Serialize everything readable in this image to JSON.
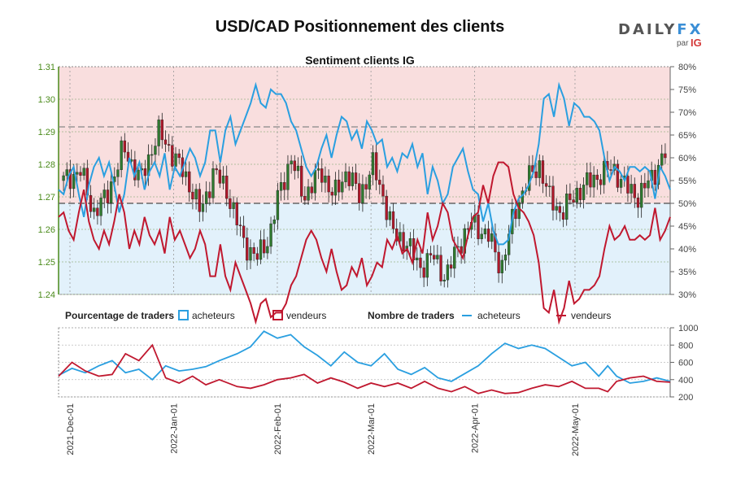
{
  "chart_data": {
    "type": "candlestick_with_sentiment",
    "title": "USD/CAD Positionnement des clients",
    "subtitle": "Sentiment clients IG",
    "logo": {
      "brand_left": "DAILY",
      "brand_right": "FX",
      "by": "par",
      "ig": "IG"
    },
    "price_axis": {
      "ticks": [
        "1.24",
        "1.25",
        "1.26",
        "1.27",
        "1.28",
        "1.29",
        "1.30",
        "1.31"
      ],
      "ylim": [
        1.24,
        1.31
      ]
    },
    "percent_axis": {
      "ticks": [
        "30%",
        "35%",
        "40%",
        "45%",
        "50%",
        "55%",
        "60%",
        "65%",
        "70%",
        "75%",
        "80%"
      ],
      "ylim": [
        30,
        80
      ]
    },
    "count_axis": {
      "ticks": [
        "200",
        "400",
        "600",
        "800",
        "1000"
      ],
      "ylim": [
        200,
        1000
      ]
    },
    "x_axis": {
      "ticks": [
        "2021-Dec-01",
        "2022-Jan-01",
        "2022-Feb-01",
        "2022-Mar-01",
        "2022-Apr-01",
        "2022-May-01"
      ],
      "n_days": 178
    },
    "legend": {
      "pct_label": "Pourcentage de traders",
      "count_label": "Nombre de traders",
      "buyers": "acheteurs",
      "sellers": "vendeurs"
    },
    "colors": {
      "buyers": "#2a9fe0",
      "sellers": "#c0182f",
      "up": "#2f7a2f",
      "down": "#b0182a",
      "bg_top": "#f9dede",
      "bg_bottom": "#e2f1fb",
      "axis_left": "#4a8a1a"
    },
    "price": [
      [
        0,
        1.275
      ],
      [
        8,
        1.278
      ],
      [
        14,
        1.265
      ],
      [
        20,
        1.27
      ],
      [
        28,
        1.285
      ],
      [
        36,
        1.275
      ],
      [
        44,
        1.29
      ],
      [
        52,
        1.282
      ],
      [
        60,
        1.272
      ],
      [
        64,
        1.265
      ],
      [
        70,
        1.278
      ],
      [
        76,
        1.272
      ],
      [
        84,
        1.256
      ],
      [
        90,
        1.251
      ],
      [
        96,
        1.258
      ],
      [
        100,
        1.27
      ],
      [
        106,
        1.282
      ],
      [
        112,
        1.27
      ],
      [
        120,
        1.278
      ],
      [
        126,
        1.27
      ],
      [
        132,
        1.278
      ],
      [
        138,
        1.27
      ],
      [
        144,
        1.28
      ],
      [
        150,
        1.268
      ],
      [
        154,
        1.258
      ],
      [
        160,
        1.256
      ],
      [
        166,
        1.248
      ],
      [
        172,
        1.252
      ],
      [
        178,
        1.245
      ],
      [
        184,
        1.255
      ],
      [
        190,
        1.262
      ],
      [
        198,
        1.258
      ],
      [
        204,
        1.248
      ],
      [
        210,
        1.265
      ],
      [
        216,
        1.275
      ],
      [
        222,
        1.28
      ],
      [
        226,
        1.27
      ],
      [
        232,
        1.265
      ],
      [
        240,
        1.272
      ],
      [
        248,
        1.276
      ],
      [
        256,
        1.279
      ],
      [
        262,
        1.273
      ],
      [
        268,
        1.27
      ],
      [
        274,
        1.276
      ],
      [
        282,
        1.285
      ]
    ],
    "buyers_pct": [
      [
        0,
        53
      ],
      [
        1,
        52
      ],
      [
        2,
        56
      ],
      [
        3,
        58
      ],
      [
        4,
        52
      ],
      [
        5,
        47
      ],
      [
        6,
        54
      ],
      [
        7,
        58
      ],
      [
        8,
        60
      ],
      [
        9,
        56
      ],
      [
        10,
        59
      ],
      [
        11,
        54
      ],
      [
        12,
        48
      ],
      [
        13,
        52
      ],
      [
        14,
        60
      ],
      [
        15,
        56
      ],
      [
        16,
        59
      ],
      [
        17,
        53
      ],
      [
        18,
        57
      ],
      [
        19,
        59
      ],
      [
        20,
        56
      ],
      [
        21,
        61
      ],
      [
        22,
        53
      ],
      [
        23,
        58
      ],
      [
        24,
        56
      ],
      [
        25,
        59
      ],
      [
        26,
        62
      ],
      [
        27,
        60
      ],
      [
        28,
        56
      ],
      [
        29,
        59
      ],
      [
        30,
        66
      ],
      [
        31,
        66
      ],
      [
        32,
        59
      ],
      [
        33,
        66
      ],
      [
        34,
        69
      ],
      [
        35,
        63
      ],
      [
        36,
        66
      ],
      [
        37,
        69
      ],
      [
        38,
        72
      ],
      [
        39,
        76
      ],
      [
        40,
        72
      ],
      [
        41,
        71
      ],
      [
        42,
        75
      ],
      [
        43,
        74
      ],
      [
        44,
        74
      ],
      [
        45,
        72
      ],
      [
        46,
        68
      ],
      [
        47,
        66
      ],
      [
        48,
        62
      ],
      [
        49,
        58
      ],
      [
        50,
        56
      ],
      [
        51,
        58
      ],
      [
        52,
        62
      ],
      [
        53,
        65
      ],
      [
        54,
        60
      ],
      [
        55,
        65
      ],
      [
        56,
        69
      ],
      [
        57,
        68
      ],
      [
        58,
        64
      ],
      [
        59,
        66
      ],
      [
        60,
        62
      ],
      [
        61,
        68
      ],
      [
        62,
        66
      ],
      [
        63,
        63
      ],
      [
        64,
        64
      ],
      [
        65,
        58
      ],
      [
        66,
        60
      ],
      [
        67,
        57
      ],
      [
        68,
        61
      ],
      [
        69,
        60
      ],
      [
        70,
        63
      ],
      [
        71,
        58
      ],
      [
        72,
        61
      ],
      [
        73,
        52
      ],
      [
        74,
        58
      ],
      [
        75,
        55
      ],
      [
        76,
        50
      ],
      [
        77,
        52
      ],
      [
        78,
        58
      ],
      [
        79,
        60
      ],
      [
        80,
        62
      ],
      [
        81,
        57
      ],
      [
        82,
        53
      ],
      [
        83,
        52
      ],
      [
        84,
        46
      ],
      [
        85,
        50
      ],
      [
        86,
        44
      ],
      [
        87,
        41
      ],
      [
        88,
        41
      ],
      [
        89,
        42
      ],
      [
        90,
        48
      ],
      [
        91,
        51
      ],
      [
        92,
        52
      ],
      [
        93,
        54
      ],
      [
        94,
        57
      ],
      [
        95,
        63
      ],
      [
        96,
        73
      ],
      [
        97,
        74
      ],
      [
        98,
        69
      ],
      [
        99,
        76
      ],
      [
        100,
        73
      ],
      [
        101,
        67
      ],
      [
        102,
        72
      ],
      [
        103,
        71
      ],
      [
        104,
        69
      ],
      [
        105,
        69
      ],
      [
        106,
        68
      ],
      [
        107,
        66
      ],
      [
        108,
        60
      ],
      [
        109,
        55
      ],
      [
        110,
        58
      ],
      [
        111,
        57
      ],
      [
        112,
        55
      ],
      [
        113,
        58
      ],
      [
        114,
        58
      ],
      [
        115,
        57
      ],
      [
        116,
        58
      ],
      [
        117,
        57
      ],
      [
        118,
        51
      ],
      [
        119,
        58
      ],
      [
        120,
        56
      ],
      [
        121,
        53
      ]
    ],
    "sellers_pct": [
      [
        0,
        47
      ],
      [
        1,
        48
      ],
      [
        2,
        44
      ],
      [
        3,
        42
      ],
      [
        4,
        48
      ],
      [
        5,
        53
      ],
      [
        6,
        46
      ],
      [
        7,
        42
      ],
      [
        8,
        40
      ],
      [
        9,
        44
      ],
      [
        10,
        41
      ],
      [
        11,
        46
      ],
      [
        12,
        52
      ],
      [
        13,
        48
      ],
      [
        14,
        40
      ],
      [
        15,
        44
      ],
      [
        16,
        41
      ],
      [
        17,
        47
      ],
      [
        18,
        43
      ],
      [
        19,
        41
      ],
      [
        20,
        44
      ],
      [
        21,
        39
      ],
      [
        22,
        47
      ],
      [
        23,
        42
      ],
      [
        24,
        44
      ],
      [
        25,
        41
      ],
      [
        26,
        38
      ],
      [
        27,
        40
      ],
      [
        28,
        44
      ],
      [
        29,
        41
      ],
      [
        30,
        34
      ],
      [
        31,
        34
      ],
      [
        32,
        41
      ],
      [
        33,
        34
      ],
      [
        34,
        31
      ],
      [
        35,
        37
      ],
      [
        36,
        34
      ],
      [
        37,
        31
      ],
      [
        38,
        28
      ],
      [
        39,
        24
      ],
      [
        40,
        28
      ],
      [
        41,
        29
      ],
      [
        42,
        25
      ],
      [
        43,
        26
      ],
      [
        44,
        26
      ],
      [
        45,
        28
      ],
      [
        46,
        32
      ],
      [
        47,
        34
      ],
      [
        48,
        38
      ],
      [
        49,
        42
      ],
      [
        50,
        44
      ],
      [
        51,
        42
      ],
      [
        52,
        38
      ],
      [
        53,
        35
      ],
      [
        54,
        40
      ],
      [
        55,
        35
      ],
      [
        56,
        31
      ],
      [
        57,
        32
      ],
      [
        58,
        36
      ],
      [
        59,
        34
      ],
      [
        60,
        38
      ],
      [
        61,
        32
      ],
      [
        62,
        34
      ],
      [
        63,
        37
      ],
      [
        64,
        36
      ],
      [
        65,
        42
      ],
      [
        66,
        40
      ],
      [
        67,
        43
      ],
      [
        68,
        39
      ],
      [
        69,
        40
      ],
      [
        70,
        37
      ],
      [
        71,
        42
      ],
      [
        72,
        39
      ],
      [
        73,
        48
      ],
      [
        74,
        42
      ],
      [
        75,
        45
      ],
      [
        76,
        50
      ],
      [
        77,
        48
      ],
      [
        78,
        42
      ],
      [
        79,
        40
      ],
      [
        80,
        38
      ],
      [
        81,
        43
      ],
      [
        82,
        47
      ],
      [
        83,
        48
      ],
      [
        84,
        54
      ],
      [
        85,
        50
      ],
      [
        86,
        56
      ],
      [
        87,
        59
      ],
      [
        88,
        59
      ],
      [
        89,
        58
      ],
      [
        90,
        52
      ],
      [
        91,
        49
      ],
      [
        92,
        48
      ],
      [
        93,
        46
      ],
      [
        94,
        43
      ],
      [
        95,
        37
      ],
      [
        96,
        27
      ],
      [
        97,
        26
      ],
      [
        98,
        31
      ],
      [
        99,
        24
      ],
      [
        100,
        27
      ],
      [
        101,
        33
      ],
      [
        102,
        28
      ],
      [
        103,
        29
      ],
      [
        104,
        31
      ],
      [
        105,
        31
      ],
      [
        106,
        32
      ],
      [
        107,
        34
      ],
      [
        108,
        40
      ],
      [
        109,
        45
      ],
      [
        110,
        42
      ],
      [
        111,
        43
      ],
      [
        112,
        45
      ],
      [
        113,
        42
      ],
      [
        114,
        42
      ],
      [
        115,
        43
      ],
      [
        116,
        42
      ],
      [
        117,
        43
      ],
      [
        118,
        49
      ],
      [
        119,
        42
      ],
      [
        120,
        44
      ],
      [
        121,
        47
      ]
    ],
    "buyers_count": [
      [
        0,
        450
      ],
      [
        6,
        530
      ],
      [
        12,
        480
      ],
      [
        18,
        560
      ],
      [
        24,
        620
      ],
      [
        30,
        480
      ],
      [
        36,
        520
      ],
      [
        42,
        400
      ],
      [
        48,
        560
      ],
      [
        54,
        500
      ],
      [
        60,
        520
      ],
      [
        66,
        550
      ],
      [
        72,
        620
      ],
      [
        80,
        700
      ],
      [
        86,
        780
      ],
      [
        92,
        960
      ],
      [
        98,
        880
      ],
      [
        104,
        920
      ],
      [
        110,
        780
      ],
      [
        116,
        680
      ],
      [
        122,
        560
      ],
      [
        128,
        720
      ],
      [
        134,
        600
      ],
      [
        140,
        560
      ],
      [
        146,
        700
      ],
      [
        152,
        520
      ],
      [
        158,
        460
      ],
      [
        164,
        540
      ],
      [
        170,
        420
      ],
      [
        176,
        380
      ],
      [
        182,
        470
      ],
      [
        188,
        560
      ],
      [
        194,
        700
      ],
      [
        200,
        820
      ],
      [
        206,
        760
      ],
      [
        212,
        800
      ],
      [
        218,
        760
      ],
      [
        224,
        660
      ],
      [
        230,
        560
      ],
      [
        236,
        600
      ],
      [
        242,
        440
      ],
      [
        246,
        560
      ],
      [
        250,
        440
      ],
      [
        256,
        360
      ],
      [
        262,
        380
      ],
      [
        268,
        420
      ],
      [
        274,
        380
      ]
    ],
    "sellers_count": [
      [
        0,
        440
      ],
      [
        6,
        600
      ],
      [
        12,
        500
      ],
      [
        18,
        440
      ],
      [
        24,
        460
      ],
      [
        30,
        700
      ],
      [
        36,
        620
      ],
      [
        42,
        800
      ],
      [
        48,
        420
      ],
      [
        54,
        360
      ],
      [
        60,
        440
      ],
      [
        66,
        340
      ],
      [
        72,
        400
      ],
      [
        80,
        320
      ],
      [
        86,
        300
      ],
      [
        92,
        340
      ],
      [
        98,
        400
      ],
      [
        104,
        420
      ],
      [
        110,
        460
      ],
      [
        116,
        360
      ],
      [
        122,
        420
      ],
      [
        128,
        370
      ],
      [
        134,
        300
      ],
      [
        140,
        360
      ],
      [
        146,
        320
      ],
      [
        152,
        360
      ],
      [
        158,
        300
      ],
      [
        164,
        380
      ],
      [
        170,
        300
      ],
      [
        176,
        260
      ],
      [
        182,
        320
      ],
      [
        188,
        240
      ],
      [
        194,
        280
      ],
      [
        200,
        240
      ],
      [
        206,
        250
      ],
      [
        212,
        300
      ],
      [
        218,
        340
      ],
      [
        224,
        320
      ],
      [
        230,
        380
      ],
      [
        236,
        300
      ],
      [
        242,
        300
      ],
      [
        246,
        260
      ],
      [
        250,
        380
      ],
      [
        256,
        420
      ],
      [
        262,
        440
      ],
      [
        268,
        380
      ],
      [
        274,
        370
      ]
    ]
  }
}
